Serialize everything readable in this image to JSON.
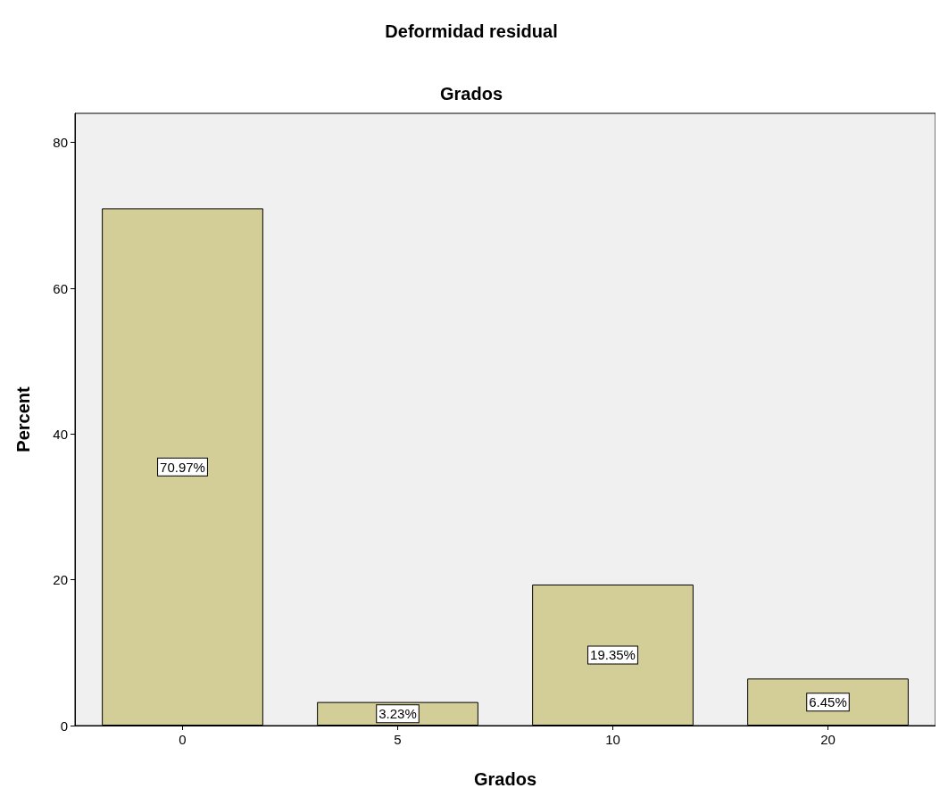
{
  "chart_data": {
    "type": "bar",
    "title": "Deformidad residual",
    "subtitle": "Grados",
    "xlabel": "Grados",
    "ylabel": "Percent",
    "categories": [
      "0",
      "5",
      "10",
      "20"
    ],
    "values": [
      70.97,
      3.23,
      19.35,
      6.45
    ],
    "value_labels": [
      "70.97%",
      "3.23%",
      "19.35%",
      "6.45%"
    ],
    "color": "#d3ce97",
    "ylim": [
      0,
      84
    ],
    "yticks": [
      0,
      20,
      40,
      60,
      80
    ],
    "grid": false
  }
}
